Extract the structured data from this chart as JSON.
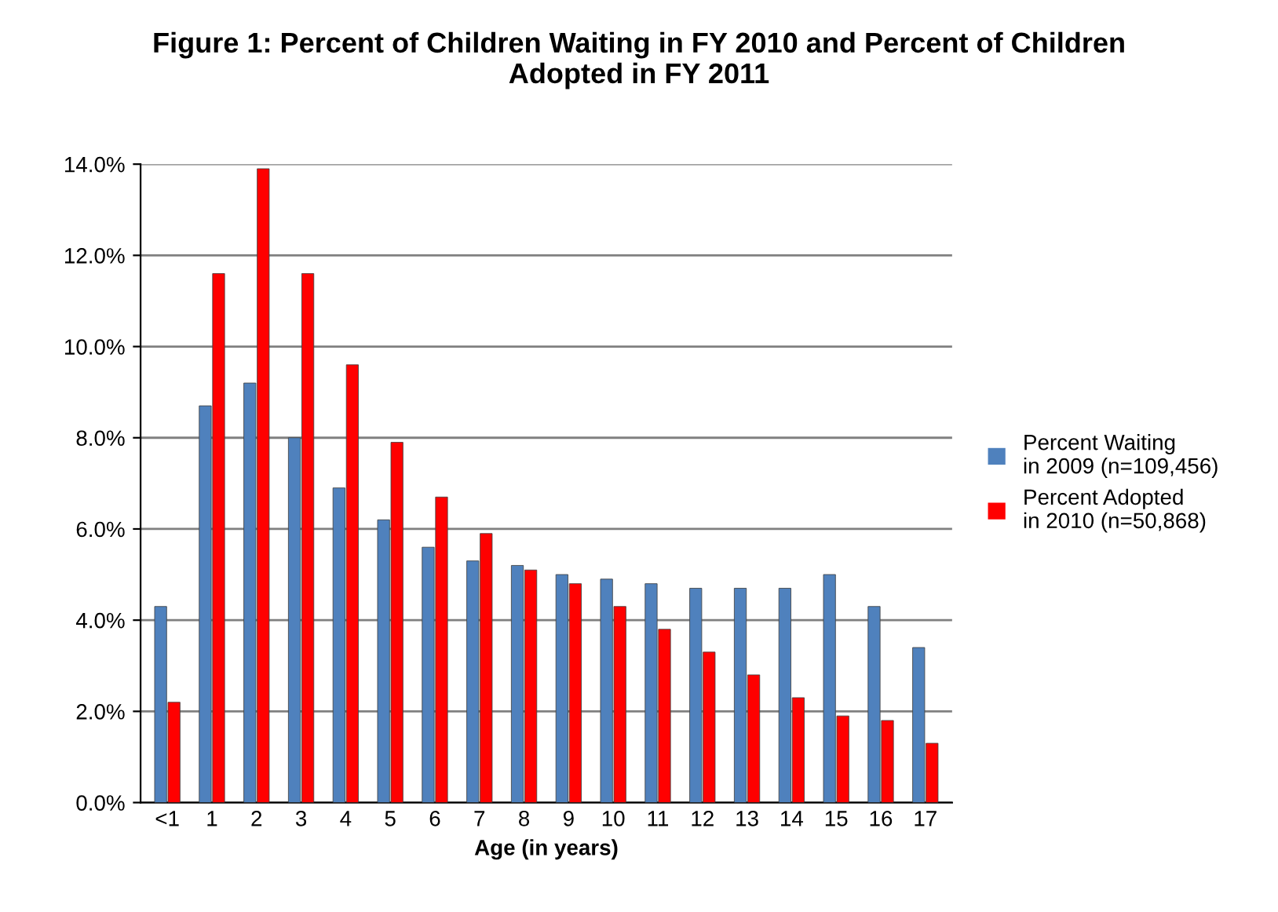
{
  "chart_data": {
    "type": "bar",
    "title": "Figure 1: Percent of Children Waiting in FY 2010 and Percent of Children\nAdopted in FY 2011",
    "xlabel": "Age (in years)",
    "categories": [
      "<1",
      "1",
      "2",
      "3",
      "4",
      "5",
      "6",
      "7",
      "8",
      "9",
      "10",
      "11",
      "12",
      "13",
      "14",
      "15",
      "16",
      "17"
    ],
    "series": [
      {
        "name": "Percent Waiting\nin 2009 (n=109,456)",
        "color": "#4f81bd",
        "values": [
          4.3,
          8.7,
          9.2,
          8.0,
          6.9,
          6.2,
          5.6,
          5.3,
          5.2,
          5.0,
          4.9,
          4.8,
          4.7,
          4.7,
          4.7,
          5.0,
          4.3,
          3.4
        ]
      },
      {
        "name": "Percent Adopted\nin 2010 (n=50,868)",
        "color": "#ff0000",
        "values": [
          2.2,
          11.6,
          13.9,
          11.6,
          9.6,
          7.9,
          6.7,
          5.9,
          5.1,
          4.8,
          4.3,
          3.8,
          3.3,
          2.8,
          2.3,
          1.9,
          1.8,
          1.3
        ]
      }
    ],
    "ylim": [
      0,
      14
    ],
    "yticks": [
      {
        "value": 0,
        "label": "0.0%"
      },
      {
        "value": 2,
        "label": "2.0%"
      },
      {
        "value": 4,
        "label": "4.0%"
      },
      {
        "value": 6,
        "label": "6.0%"
      },
      {
        "value": 8,
        "label": "8.0%"
      },
      {
        "value": 10,
        "label": "10.0%"
      },
      {
        "value": 12,
        "label": "12.0%"
      },
      {
        "value": 14,
        "label": "14.0%"
      }
    ],
    "grid": "y",
    "legend": "right"
  }
}
